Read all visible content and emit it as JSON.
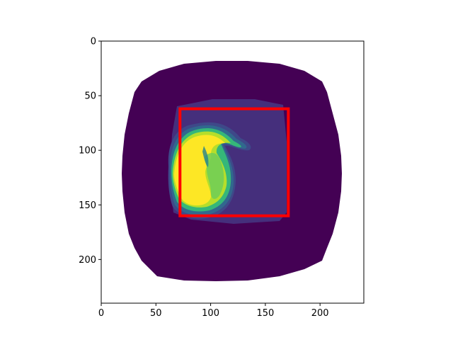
{
  "figure": {
    "x_ticks": [
      "0",
      "50",
      "100",
      "150",
      "200"
    ],
    "y_ticks": [
      "0",
      "50",
      "100",
      "150",
      "200"
    ]
  },
  "image": {
    "width_units": 240,
    "height_units": 240,
    "background_color": "#ffffff",
    "mask_color": "#440154",
    "tissue_inner_color": "#46327e",
    "object_colors": [
      "#fde725",
      "#b5de2b",
      "#6ece58",
      "#35b779",
      "#1f9e89",
      "#26828e",
      "#31688e",
      "#3e4989"
    ]
  },
  "bounding_box": {
    "x0": 72,
    "y0": 62,
    "x1": 171,
    "y1": 160,
    "color": "#ff0000"
  },
  "axes": {
    "xlim": [
      0,
      240
    ],
    "ylim": [
      240,
      0
    ],
    "x_tick_values": [
      0,
      50,
      100,
      150,
      200
    ],
    "y_tick_values": [
      0,
      50,
      100,
      150,
      200
    ]
  }
}
